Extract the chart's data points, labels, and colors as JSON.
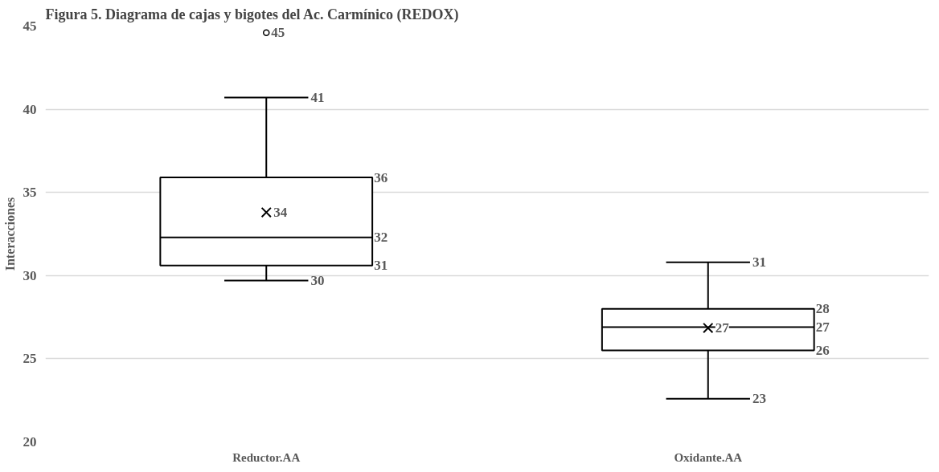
{
  "chart_data": {
    "type": "box",
    "title": "Figura 5. Diagrama de cajas y bigotes del Ac. Carmínico (REDOX)",
    "ylabel": "Interacciones",
    "categories": [
      "Reductor.AA",
      "Oxidante.AA"
    ],
    "boxes": [
      {
        "low": 29.7,
        "q1": 30.6,
        "median": 32.3,
        "q3": 35.9,
        "high": 40.7,
        "mean": 33.8,
        "outliers": [
          44.6
        ]
      },
      {
        "low": 22.6,
        "q1": 25.5,
        "median": 26.9,
        "q3": 28.0,
        "high": 30.8,
        "mean": 26.85
      }
    ],
    "color": "#000000",
    "ylim": [
      20,
      45
    ],
    "yticks": [
      20,
      25,
      30,
      35,
      40,
      45
    ],
    "grid": "y",
    "marker": "cross",
    "annotations": [
      "45",
      "41",
      "36",
      "34",
      "32",
      "31",
      "30",
      "31",
      "28",
      "27",
      "27",
      "26",
      "23"
    ]
  }
}
